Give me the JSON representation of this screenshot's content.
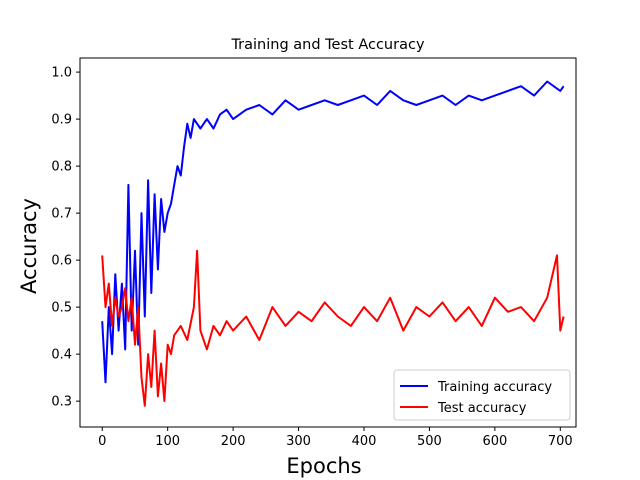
{
  "chart_data": {
    "type": "line",
    "title": "Training and Test Accuracy",
    "xlabel": "Epochs",
    "ylabel": "Accuracy",
    "xlim": [
      -34,
      724
    ],
    "ylim": [
      0.245,
      1.03
    ],
    "xticks": [
      0,
      100,
      200,
      300,
      400,
      500,
      600,
      700
    ],
    "yticks": [
      0.3,
      0.4,
      0.5,
      0.6,
      0.7,
      0.8,
      0.9,
      1.0
    ],
    "ytick_labels": [
      "0.3",
      "0.4",
      "0.5",
      "0.6",
      "0.7",
      "0.8",
      "0.9",
      "1.0"
    ],
    "grid": false,
    "legend_position": "lower-right",
    "series": [
      {
        "name": "Training accuracy",
        "color": "#0000ff",
        "x": [
          0,
          5,
          10,
          15,
          20,
          25,
          30,
          35,
          40,
          45,
          50,
          55,
          60,
          65,
          70,
          75,
          80,
          85,
          90,
          95,
          100,
          105,
          110,
          115,
          120,
          125,
          130,
          135,
          140,
          150,
          160,
          170,
          180,
          190,
          200,
          220,
          240,
          260,
          280,
          300,
          320,
          340,
          360,
          380,
          400,
          420,
          440,
          460,
          480,
          500,
          520,
          540,
          560,
          580,
          600,
          620,
          640,
          660,
          680,
          700,
          705
        ],
        "y": [
          0.47,
          0.34,
          0.5,
          0.4,
          0.57,
          0.45,
          0.55,
          0.41,
          0.76,
          0.45,
          0.62,
          0.42,
          0.7,
          0.48,
          0.77,
          0.53,
          0.74,
          0.58,
          0.73,
          0.66,
          0.7,
          0.72,
          0.76,
          0.8,
          0.78,
          0.84,
          0.89,
          0.86,
          0.9,
          0.88,
          0.9,
          0.88,
          0.91,
          0.92,
          0.9,
          0.92,
          0.93,
          0.91,
          0.94,
          0.92,
          0.93,
          0.94,
          0.93,
          0.94,
          0.95,
          0.93,
          0.96,
          0.94,
          0.93,
          0.94,
          0.95,
          0.93,
          0.95,
          0.94,
          0.95,
          0.96,
          0.97,
          0.95,
          0.98,
          0.96,
          0.97
        ]
      },
      {
        "name": "Test accuracy",
        "color": "#ff0000",
        "x": [
          0,
          5,
          10,
          15,
          20,
          25,
          30,
          35,
          40,
          45,
          50,
          55,
          60,
          65,
          70,
          75,
          80,
          85,
          90,
          95,
          100,
          105,
          110,
          120,
          130,
          140,
          145,
          150,
          160,
          170,
          180,
          190,
          200,
          220,
          240,
          260,
          280,
          300,
          320,
          340,
          360,
          380,
          400,
          420,
          440,
          460,
          480,
          500,
          520,
          540,
          560,
          580,
          600,
          620,
          640,
          660,
          680,
          695,
          700,
          705
        ],
        "y": [
          0.61,
          0.5,
          0.55,
          0.46,
          0.52,
          0.48,
          0.5,
          0.54,
          0.47,
          0.52,
          0.42,
          0.5,
          0.35,
          0.29,
          0.4,
          0.33,
          0.45,
          0.31,
          0.38,
          0.3,
          0.42,
          0.4,
          0.44,
          0.46,
          0.43,
          0.5,
          0.62,
          0.45,
          0.41,
          0.46,
          0.44,
          0.47,
          0.45,
          0.48,
          0.43,
          0.5,
          0.46,
          0.49,
          0.47,
          0.51,
          0.48,
          0.46,
          0.5,
          0.47,
          0.52,
          0.45,
          0.5,
          0.48,
          0.51,
          0.47,
          0.5,
          0.46,
          0.52,
          0.49,
          0.5,
          0.47,
          0.52,
          0.61,
          0.45,
          0.48
        ]
      }
    ]
  }
}
